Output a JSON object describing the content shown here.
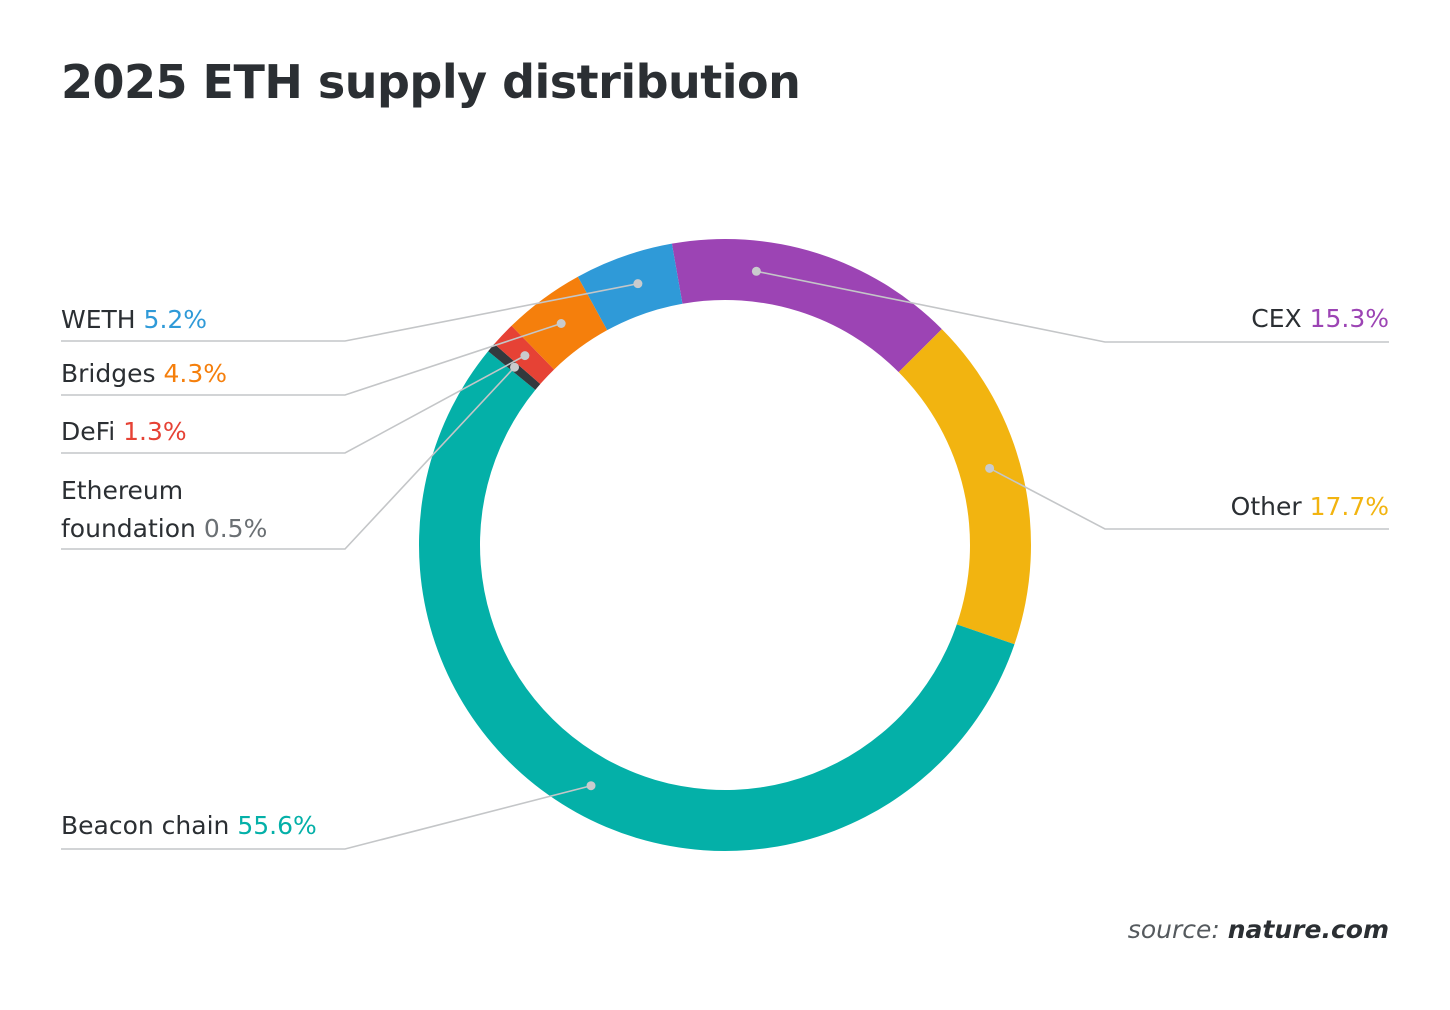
{
  "chart_data": {
    "type": "pie",
    "style": "donut",
    "title": "2025 ETH supply distribution",
    "slices": [
      {
        "name": "CEX",
        "value": 15.3,
        "value_label": "15.3%",
        "color": "#9c44b4"
      },
      {
        "name": "Other",
        "value": 17.7,
        "value_label": "17.7%",
        "color": "#f2b410"
      },
      {
        "name": "Beacon chain",
        "value": 55.6,
        "value_label": "55.6%",
        "color": "#04b0a8"
      },
      {
        "name": "Ethereum foundation",
        "name_lines": [
          "Ethereum",
          "foundation"
        ],
        "value": 0.5,
        "value_label": "0.5%",
        "color": "#33393d",
        "label_color": "#6b7074"
      },
      {
        "name": "DeFi",
        "value": 1.3,
        "value_label": "1.3%",
        "color": "#e64235"
      },
      {
        "name": "Bridges",
        "value": 4.3,
        "value_label": "4.3%",
        "color": "#f57f0c"
      },
      {
        "name": "WETH",
        "value": 5.2,
        "value_label": "5.2%",
        "color": "#2f9ad8"
      }
    ],
    "legend_placement": "callouts"
  },
  "source": {
    "prefix": "source:",
    "site": "nature.com"
  }
}
